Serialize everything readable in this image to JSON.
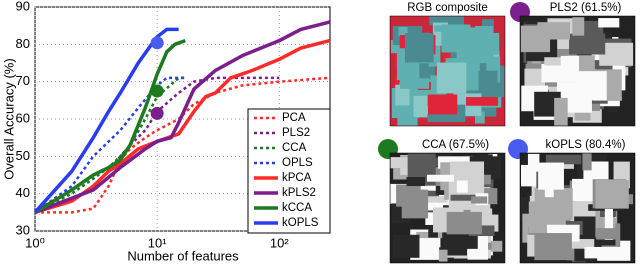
{
  "chart_data": {
    "type": "line",
    "x_scale": "log",
    "grid": true,
    "legend": "right",
    "xlabel": "Number of features",
    "ylabel": "Overall Accuracy (%)",
    "xlim": [
      1,
      260
    ],
    "ylim": [
      30,
      90
    ],
    "xticks": [
      {
        "value": 1,
        "label": "10⁰"
      },
      {
        "value": 10,
        "label": "10¹"
      },
      {
        "value": 100,
        "label": "10²"
      }
    ],
    "yticks": [
      30,
      40,
      50,
      60,
      70,
      80,
      90
    ],
    "series": [
      {
        "name": "PCA",
        "color": "#ff2a2a",
        "style": "dotted",
        "x": [
          1,
          2,
          3,
          4,
          5,
          6,
          8,
          10,
          15,
          20,
          30,
          50,
          100,
          250
        ],
        "values": [
          35,
          35,
          36,
          42,
          49,
          52,
          55,
          57,
          60,
          64,
          67,
          69,
          70,
          71
        ]
      },
      {
        "name": "PLS2",
        "color": "#7a1f8c",
        "style": "dotted",
        "x": [
          1,
          2,
          3,
          4,
          5,
          6,
          8,
          10,
          15,
          20,
          30,
          50,
          100
        ],
        "values": [
          35,
          38,
          42,
          46,
          50,
          53,
          57,
          62,
          67,
          70,
          71,
          71,
          71
        ]
      },
      {
        "name": "CCA",
        "color": "#1e7a1e",
        "style": "dotted",
        "x": [
          1,
          2,
          3,
          4,
          5,
          6,
          8,
          10,
          15,
          17
        ],
        "values": [
          35,
          40,
          44,
          47,
          50,
          53,
          60,
          66,
          71,
          71
        ]
      },
      {
        "name": "OPLS",
        "color": "#2a3cf0",
        "style": "dotted",
        "x": [
          1,
          2,
          3,
          5,
          7,
          10,
          12,
          17
        ],
        "values": [
          35,
          42,
          50,
          57,
          63,
          69,
          71,
          71
        ]
      },
      {
        "name": "kPCA",
        "color": "#ff2a2a",
        "style": "solid",
        "x": [
          1,
          2,
          3,
          4,
          5,
          7,
          10,
          15,
          20,
          25,
          30,
          40,
          60,
          100,
          150,
          260
        ],
        "values": [
          35,
          38,
          42,
          46,
          48,
          52,
          54,
          56,
          62,
          66,
          67,
          71,
          73,
          76,
          79,
          81
        ]
      },
      {
        "name": "kPLS2",
        "color": "#7a1f8c",
        "style": "solid",
        "x": [
          1,
          3,
          5,
          8,
          10,
          13,
          15,
          20,
          30,
          50,
          100,
          150,
          260
        ],
        "values": [
          35,
          41,
          47,
          52,
          54,
          55,
          59,
          68,
          73,
          77,
          81,
          84,
          86
        ]
      },
      {
        "name": "kCCA",
        "color": "#1e7a1e",
        "style": "solid",
        "x": [
          1,
          2,
          3,
          4,
          5,
          6,
          8,
          10,
          12,
          14,
          17
        ],
        "values": [
          35,
          41,
          45,
          47,
          49,
          53,
          63,
          72,
          78,
          80,
          81
        ]
      },
      {
        "name": "kOPLS",
        "color": "#2a3cf0",
        "style": "solid",
        "x": [
          1,
          2,
          3,
          4,
          5,
          7,
          9,
          10,
          12,
          15
        ],
        "values": [
          35,
          46,
          55,
          62,
          67,
          75,
          80,
          82,
          84,
          84
        ]
      }
    ],
    "points": {
      "x": [
        10,
        10,
        10
      ],
      "values": [
        61.5,
        67.5,
        80.4
      ],
      "colors": [
        "#7a1f8c",
        "#1e7a1e",
        "#4a5cf0"
      ]
    }
  },
  "panels": [
    {
      "title": "RGB composite",
      "kind": "rgb"
    },
    {
      "title": "PLS2 (61.5%)",
      "kind": "gray",
      "dot": "#7a1f8c"
    },
    {
      "title": "CCA (67.5%)",
      "kind": "gray",
      "dot": "#1e7a1e"
    },
    {
      "title": "kOPLS (80.4%)",
      "kind": "gray",
      "dot": "#4a5cf0"
    }
  ]
}
